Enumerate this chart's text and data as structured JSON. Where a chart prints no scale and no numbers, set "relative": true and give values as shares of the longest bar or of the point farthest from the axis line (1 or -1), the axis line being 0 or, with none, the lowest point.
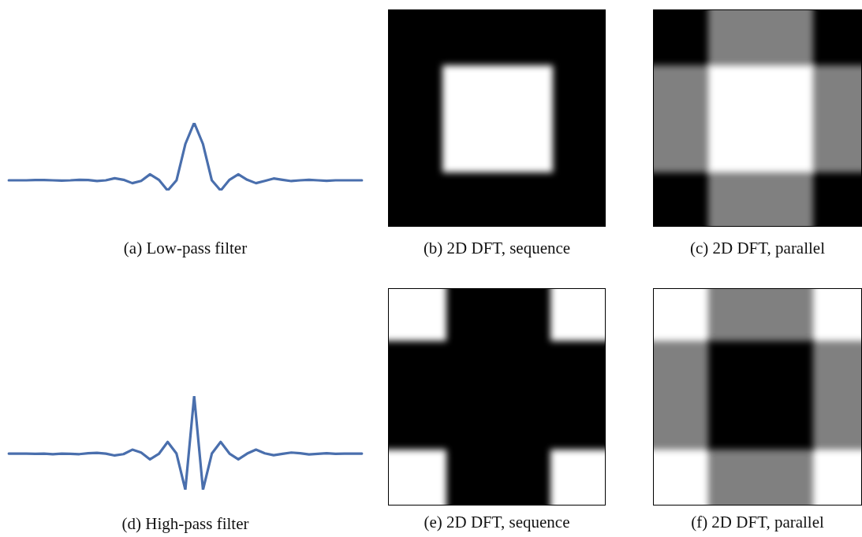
{
  "chart_data": [
    {
      "type": "line",
      "title": "(a) Low-pass filter",
      "relative": true,
      "marker": "none",
      "legend": false,
      "color": "#4a6fad",
      "categories": [
        null,
        null,
        null,
        null,
        null,
        null,
        null,
        null,
        null,
        null,
        null,
        null,
        null,
        null,
        null,
        null,
        null,
        null,
        null,
        null,
        null,
        null,
        null,
        null,
        null,
        null,
        null,
        null,
        null,
        null,
        null,
        null,
        null,
        null,
        null,
        null,
        null,
        null,
        null,
        null,
        null
      ],
      "values": [
        0.151,
        0.151,
        0.151,
        0.155,
        0.155,
        0.151,
        0.147,
        0.151,
        0.159,
        0.155,
        0.14,
        0.151,
        0.182,
        0.159,
        0.109,
        0.143,
        0.24,
        0.159,
        0,
        0.151,
        0.686,
        1,
        0.686,
        0.151,
        0,
        0.159,
        0.24,
        0.159,
        0.109,
        0.143,
        0.178,
        0.159,
        0.14,
        0.151,
        0.159,
        0.151,
        0.143,
        0.151,
        0.151,
        0.151,
        0.151
      ]
    },
    {
      "type": "other",
      "title": "(b) 2D DFT, sequence"
    },
    {
      "type": "other",
      "title": "(c) 2D DFT, parallel"
    },
    {
      "type": "line",
      "title": "(d) High-pass filter",
      "relative": true,
      "marker": "none",
      "legend": false,
      "color": "#4a6fad",
      "categories": [
        null,
        null,
        null,
        null,
        null,
        null,
        null,
        null,
        null,
        null,
        null,
        null,
        null,
        null,
        null,
        null,
        null,
        null,
        null,
        null,
        null,
        null,
        null,
        null,
        null,
        null,
        null,
        null,
        null,
        null,
        null,
        null,
        null,
        null,
        null,
        null,
        null,
        null,
        null,
        null,
        null
      ],
      "values": [
        0.386,
        0.386,
        0.386,
        0.383,
        0.386,
        0.38,
        0.386,
        0.383,
        0.38,
        0.389,
        0.394,
        0.386,
        0.366,
        0.38,
        0.428,
        0.397,
        0.324,
        0.383,
        0.51,
        0.386,
        0,
        1,
        0,
        0.386,
        0.51,
        0.386,
        0.324,
        0.386,
        0.428,
        0.389,
        0.369,
        0.383,
        0.397,
        0.389,
        0.377,
        0.383,
        0.389,
        0.383,
        0.386,
        0.386,
        0.386
      ]
    },
    {
      "type": "other",
      "title": "(e) 2D DFT, sequence"
    },
    {
      "type": "other",
      "title": "(f) 2D DFT, parallel"
    }
  ]
}
